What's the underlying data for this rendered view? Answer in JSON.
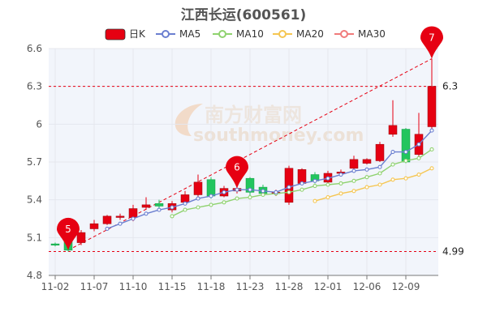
{
  "chart_data": {
    "type": "candlestick",
    "title": "江西长运(600561)",
    "legend": [
      {
        "name": "日K",
        "color": "#e60012",
        "kind": "box"
      },
      {
        "name": "MA5",
        "color": "#6b7fd0",
        "kind": "line"
      },
      {
        "name": "MA10",
        "color": "#8fd26f",
        "kind": "line"
      },
      {
        "name": "MA20",
        "color": "#f5c652",
        "kind": "line"
      },
      {
        "name": "MA30",
        "color": "#f07b7b",
        "kind": "line"
      }
    ],
    "legend_position": "top-center",
    "watermark": {
      "cn": "南方财富网",
      "en": "southmoney.com"
    },
    "y_axis": {
      "min": 4.8,
      "max": 6.6,
      "ticks": [
        "4.8",
        "5.1",
        "5.4",
        "5.7",
        "6",
        "6.3",
        "6.6"
      ],
      "tick_values": [
        4.8,
        5.1,
        5.4,
        5.7,
        6.0,
        6.3,
        6.6
      ]
    },
    "x_tick_labels": [
      {
        "label": "11-02",
        "index": 0
      },
      {
        "label": "11-07",
        "index": 3
      },
      {
        "label": "11-10",
        "index": 6
      },
      {
        "label": "11-15",
        "index": 9
      },
      {
        "label": "11-18",
        "index": 12
      },
      {
        "label": "11-23",
        "index": 15
      },
      {
        "label": "11-28",
        "index": 18
      },
      {
        "label": "12-01",
        "index": 21
      },
      {
        "label": "12-06",
        "index": 24
      },
      {
        "label": "12-09",
        "index": 27
      }
    ],
    "grid": true,
    "candles": [
      {
        "o": 5.05,
        "c": 5.04,
        "h": 5.06,
        "l": 5.03
      },
      {
        "o": 5.08,
        "c": 5.0,
        "h": 5.1,
        "l": 4.99
      },
      {
        "o": 5.06,
        "c": 5.14,
        "h": 5.16,
        "l": 5.04
      },
      {
        "o": 5.17,
        "c": 5.21,
        "h": 5.24,
        "l": 5.15
      },
      {
        "o": 5.21,
        "c": 5.27,
        "h": 5.28,
        "l": 5.2
      },
      {
        "o": 5.26,
        "c": 5.27,
        "h": 5.29,
        "l": 5.24
      },
      {
        "o": 5.26,
        "c": 5.33,
        "h": 5.36,
        "l": 5.23
      },
      {
        "o": 5.34,
        "c": 5.36,
        "h": 5.42,
        "l": 5.32
      },
      {
        "o": 5.37,
        "c": 5.35,
        "h": 5.4,
        "l": 5.33
      },
      {
        "o": 5.32,
        "c": 5.37,
        "h": 5.39,
        "l": 5.3
      },
      {
        "o": 5.38,
        "c": 5.44,
        "h": 5.47,
        "l": 5.36
      },
      {
        "o": 5.44,
        "c": 5.54,
        "h": 5.6,
        "l": 5.42
      },
      {
        "o": 5.56,
        "c": 5.43,
        "h": 5.58,
        "l": 5.41
      },
      {
        "o": 5.43,
        "c": 5.49,
        "h": 5.51,
        "l": 5.42
      },
      {
        "o": 5.47,
        "c": 5.49,
        "h": 5.5,
        "l": 5.45
      },
      {
        "o": 5.57,
        "c": 5.46,
        "h": 5.58,
        "l": 5.41
      },
      {
        "o": 5.5,
        "c": 5.45,
        "h": 5.52,
        "l": 5.43
      },
      {
        "o": 5.45,
        "c": 5.46,
        "h": 5.48,
        "l": 5.43
      },
      {
        "o": 5.38,
        "c": 5.65,
        "h": 5.67,
        "l": 5.36
      },
      {
        "o": 5.53,
        "c": 5.64,
        "h": 5.65,
        "l": 5.52
      },
      {
        "o": 5.6,
        "c": 5.55,
        "h": 5.62,
        "l": 5.53
      },
      {
        "o": 5.54,
        "c": 5.61,
        "h": 5.63,
        "l": 5.52
      },
      {
        "o": 5.61,
        "c": 5.62,
        "h": 5.64,
        "l": 5.6
      },
      {
        "o": 5.65,
        "c": 5.72,
        "h": 5.75,
        "l": 5.64
      },
      {
        "o": 5.69,
        "c": 5.72,
        "h": 5.73,
        "l": 5.68
      },
      {
        "o": 5.71,
        "c": 5.84,
        "h": 5.86,
        "l": 5.7
      },
      {
        "o": 5.92,
        "c": 5.99,
        "h": 6.19,
        "l": 5.9
      },
      {
        "o": 5.96,
        "c": 5.7,
        "h": 5.97,
        "l": 5.69
      },
      {
        "o": 5.76,
        "c": 5.92,
        "h": 6.09,
        "l": 5.74
      },
      {
        "o": 5.98,
        "c": 6.3,
        "h": 6.52,
        "l": 5.96
      }
    ],
    "ma5": [
      null,
      null,
      null,
      null,
      5.17,
      5.21,
      5.25,
      5.29,
      5.32,
      5.34,
      5.37,
      5.41,
      5.43,
      5.46,
      5.48,
      5.48,
      5.47,
      5.46,
      5.5,
      5.53,
      5.55,
      5.57,
      5.6,
      5.63,
      5.64,
      5.66,
      5.78,
      5.78,
      5.84,
      5.95
    ],
    "ma10": [
      null,
      null,
      null,
      null,
      null,
      null,
      null,
      null,
      null,
      5.27,
      5.32,
      5.34,
      5.36,
      5.38,
      5.41,
      5.42,
      5.44,
      5.45,
      5.46,
      5.48,
      5.51,
      5.52,
      5.53,
      5.55,
      5.58,
      5.61,
      5.68,
      5.71,
      5.73,
      5.8
    ],
    "ma20": [
      null,
      null,
      null,
      null,
      null,
      null,
      null,
      null,
      null,
      null,
      null,
      null,
      null,
      null,
      null,
      null,
      null,
      null,
      null,
      null,
      5.39,
      5.42,
      5.45,
      5.47,
      5.5,
      5.52,
      5.56,
      5.57,
      5.6,
      5.65
    ],
    "markers": [
      {
        "label": "5",
        "index": 1,
        "value": 5.0
      },
      {
        "label": "6",
        "index": 14,
        "value": 5.49
      },
      {
        "label": "7",
        "index": 29,
        "value": 6.52
      }
    ],
    "reference_lines": [
      {
        "value": 6.3,
        "label": "6.3",
        "color": "#e60012",
        "style": "dashed"
      },
      {
        "value": 4.99,
        "label": "4.99",
        "color": "#e60012",
        "style": "dashed"
      }
    ],
    "trend_line": {
      "from": {
        "index": 1,
        "value": 5.0
      },
      "to": {
        "index": 29,
        "value": 6.52
      },
      "color": "#e60012",
      "style": "dashed"
    },
    "colors": {
      "up": "#e60012",
      "down": "#22c55e",
      "axis": "#777777",
      "grid": "#e5e7ee"
    }
  }
}
